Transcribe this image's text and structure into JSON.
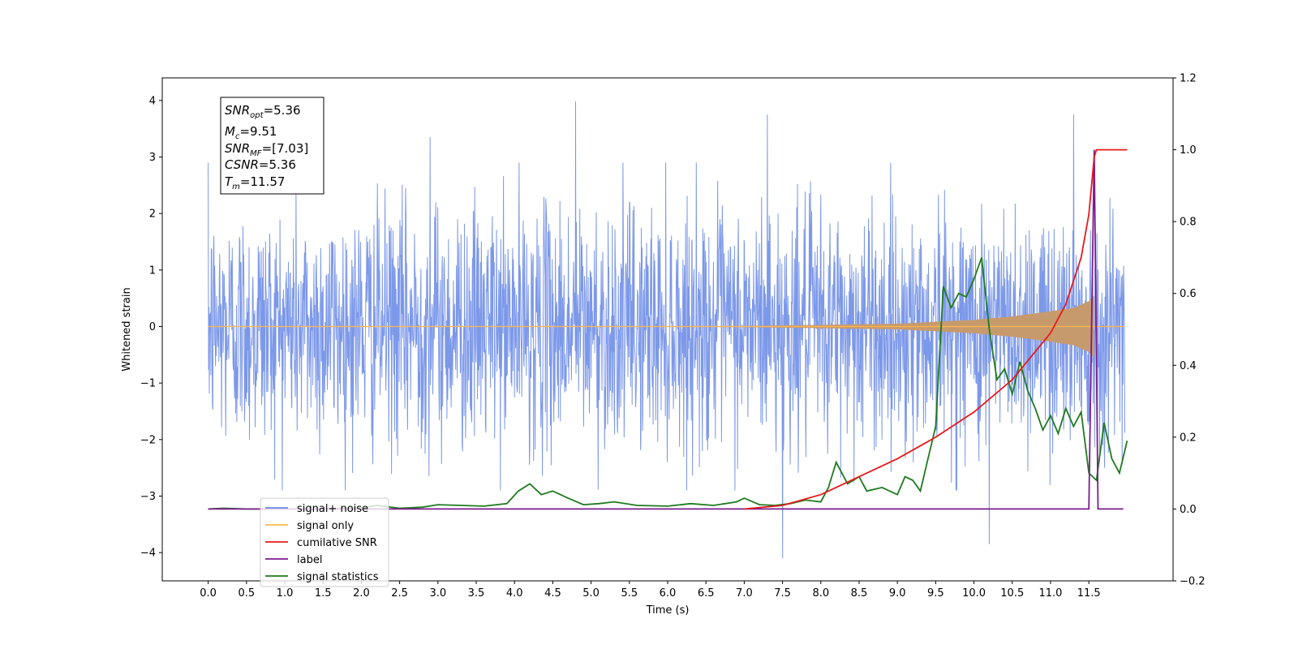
{
  "chart_data": {
    "type": "line",
    "xlabel": "Time (s)",
    "ylabel": "Whitened strain",
    "xlim": [
      -0.6,
      12.6
    ],
    "ylim": [
      -4.5,
      4.4
    ],
    "y2lim": [
      -0.2,
      1.2
    ],
    "x_ticks": [
      "0.0",
      "0.5",
      "1.0",
      "1.5",
      "2.0",
      "2.5",
      "3.0",
      "3.5",
      "4.0",
      "4.5",
      "5.0",
      "5.5",
      "6.0",
      "6.5",
      "7.0",
      "7.5",
      "8.0",
      "8.5",
      "9.0",
      "9.5",
      "10.0",
      "10.5",
      "11.0",
      "11.5"
    ],
    "y_ticks": [
      "4",
      "3",
      "2",
      "1",
      "0",
      "−1",
      "−2",
      "−3",
      "−4"
    ],
    "y2_ticks": [
      "1.2",
      "1.0",
      "0.8",
      "0.6",
      "0.4",
      "0.2",
      "0.0",
      "−0.2"
    ],
    "grid": false,
    "legend_position": "lower-left",
    "stats_box": {
      "snr_opt": "=5.36",
      "mc": "=9.51",
      "snr_mf": "=[7.03]",
      "csnr": "=5.36",
      "tm": "=11.57"
    },
    "series": [
      {
        "name": "signal+ noise",
        "axis": "left",
        "color": "#6A8AE6",
        "note_range": [
          -2.5,
          2.5
        ],
        "peaks": [
          [
            4.8,
            3.98
          ],
          [
            7.3,
            3.75
          ],
          [
            11.3,
            3.75
          ],
          [
            2.9,
            3.35
          ],
          [
            7.5,
            -4.1
          ],
          [
            10.2,
            -3.85
          ]
        ]
      },
      {
        "name": "signal only",
        "axis": "left",
        "color": "#FFB74D",
        "envelope": [
          [
            0.0,
            0.0
          ],
          [
            7.0,
            0.01
          ],
          [
            9.0,
            0.05
          ],
          [
            10.0,
            0.12
          ],
          [
            10.5,
            0.18
          ],
          [
            11.0,
            0.27
          ],
          [
            11.3,
            0.33
          ],
          [
            11.5,
            0.45
          ],
          [
            11.57,
            0.55
          ]
        ]
      },
      {
        "name": "cumilative SNR",
        "axis": "right",
        "color": "#E8191A",
        "points": [
          [
            7.0,
            0.0
          ],
          [
            7.5,
            0.01
          ],
          [
            8.0,
            0.04
          ],
          [
            8.5,
            0.09
          ],
          [
            9.0,
            0.14
          ],
          [
            9.5,
            0.2
          ],
          [
            10.0,
            0.27
          ],
          [
            10.5,
            0.36
          ],
          [
            11.0,
            0.49
          ],
          [
            11.2,
            0.57
          ],
          [
            11.4,
            0.7
          ],
          [
            11.5,
            0.82
          ],
          [
            11.57,
            0.98
          ],
          [
            11.6,
            1.0
          ],
          [
            12.0,
            1.0
          ]
        ]
      },
      {
        "name": "label",
        "axis": "right",
        "color": "#7B1C8C",
        "points": [
          [
            0.0,
            0.0
          ],
          [
            11.5,
            0.0
          ],
          [
            11.57,
            1.0
          ],
          [
            11.62,
            0.0
          ],
          [
            11.95,
            0.0
          ]
        ]
      },
      {
        "name": "signal statistics",
        "axis": "right",
        "color": "#1F7A1F",
        "points": [
          [
            0.0,
            0.0
          ],
          [
            0.2,
            0.002
          ],
          [
            0.5,
            0.0
          ],
          [
            1.0,
            0.0
          ],
          [
            1.5,
            0.0
          ],
          [
            2.0,
            0.003
          ],
          [
            2.2,
            0.01
          ],
          [
            2.5,
            0.002
          ],
          [
            2.8,
            0.005
          ],
          [
            3.0,
            0.012
          ],
          [
            3.3,
            0.01
          ],
          [
            3.6,
            0.008
          ],
          [
            3.9,
            0.015
          ],
          [
            4.05,
            0.05
          ],
          [
            4.2,
            0.07
          ],
          [
            4.35,
            0.04
          ],
          [
            4.5,
            0.05
          ],
          [
            4.7,
            0.03
          ],
          [
            4.9,
            0.012
          ],
          [
            5.1,
            0.015
          ],
          [
            5.3,
            0.02
          ],
          [
            5.6,
            0.01
          ],
          [
            6.0,
            0.008
          ],
          [
            6.3,
            0.015
          ],
          [
            6.6,
            0.01
          ],
          [
            6.9,
            0.02
          ],
          [
            7.0,
            0.03
          ],
          [
            7.2,
            0.012
          ],
          [
            7.4,
            0.01
          ],
          [
            7.6,
            0.015
          ],
          [
            7.8,
            0.025
          ],
          [
            8.0,
            0.02
          ],
          [
            8.1,
            0.06
          ],
          [
            8.2,
            0.13
          ],
          [
            8.35,
            0.07
          ],
          [
            8.5,
            0.09
          ],
          [
            8.6,
            0.05
          ],
          [
            8.8,
            0.06
          ],
          [
            9.0,
            0.04
          ],
          [
            9.1,
            0.09
          ],
          [
            9.2,
            0.08
          ],
          [
            9.3,
            0.05
          ],
          [
            9.4,
            0.14
          ],
          [
            9.5,
            0.23
          ],
          [
            9.6,
            0.62
          ],
          [
            9.7,
            0.56
          ],
          [
            9.8,
            0.6
          ],
          [
            9.9,
            0.59
          ],
          [
            10.0,
            0.64
          ],
          [
            10.1,
            0.7
          ],
          [
            10.2,
            0.5
          ],
          [
            10.3,
            0.36
          ],
          [
            10.4,
            0.39
          ],
          [
            10.5,
            0.32
          ],
          [
            10.6,
            0.41
          ],
          [
            10.7,
            0.33
          ],
          [
            10.8,
            0.28
          ],
          [
            10.9,
            0.22
          ],
          [
            11.0,
            0.26
          ],
          [
            11.1,
            0.21
          ],
          [
            11.2,
            0.28
          ],
          [
            11.3,
            0.23
          ],
          [
            11.4,
            0.27
          ],
          [
            11.5,
            0.1
          ],
          [
            11.6,
            0.08
          ],
          [
            11.7,
            0.24
          ],
          [
            11.8,
            0.14
          ],
          [
            11.9,
            0.1
          ],
          [
            12.0,
            0.19
          ]
        ]
      }
    ]
  }
}
